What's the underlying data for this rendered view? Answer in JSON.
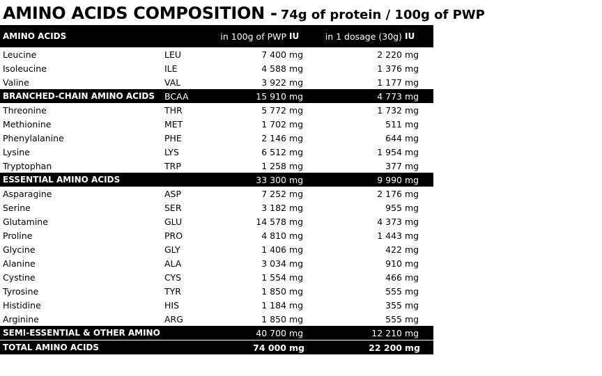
{
  "title": {
    "main": "AMINO ACIDS COMPOSITION -",
    "sub": "74g of protein / 100g of PWP"
  },
  "header": {
    "label": "AMINO ACIDS",
    "col1": "in 100g of PWP",
    "col2": "in 1 dosage (30g)",
    "unit": "IU"
  },
  "rows": [
    {
      "name": "Leucine",
      "code": "LEU",
      "v1": "7 400",
      "u1": "mg",
      "v2": "2 220",
      "u2": "mg",
      "type": "normal"
    },
    {
      "name": "Isoleucine",
      "code": "ILE",
      "v1": "4 588",
      "u1": "mg",
      "v2": "1 376",
      "u2": "mg",
      "type": "normal"
    },
    {
      "name": "Valine",
      "code": "VAL",
      "v1": "3 922",
      "u1": "mg",
      "v2": "1 177",
      "u2": "mg",
      "type": "normal"
    },
    {
      "name": "BRANCHED-CHAIN AMINO ACIDS",
      "code": "BCAA",
      "v1": "15 910",
      "u1": "mg",
      "v2": "4 773",
      "u2": "mg",
      "type": "sum"
    },
    {
      "name": "Threonine",
      "code": "THR",
      "v1": "5 772",
      "u1": "mg",
      "v2": "1 732",
      "u2": "mg",
      "type": "normal"
    },
    {
      "name": "Methionine",
      "code": "MET",
      "v1": "1 702",
      "u1": "mg",
      "v2": "511",
      "u2": "mg",
      "type": "normal"
    },
    {
      "name": "Phenylalanine",
      "code": "PHE",
      "v1": "2 146",
      "u1": "mg",
      "v2": "644",
      "u2": "mg",
      "type": "normal"
    },
    {
      "name": "Lysine",
      "code": "LYS",
      "v1": "6 512",
      "u1": "mg",
      "v2": "1 954",
      "u2": "mg",
      "type": "normal"
    },
    {
      "name": "Tryptophan",
      "code": "TRP",
      "v1": "1 258",
      "u1": "mg",
      "v2": "377",
      "u2": "mg",
      "type": "normal"
    },
    {
      "name": "ESSENTIAL AMINO ACIDS",
      "code": "",
      "v1": "33 300",
      "u1": "mg",
      "v2": "9 990",
      "u2": "mg",
      "type": "sum"
    },
    {
      "name": "Asparagine",
      "code": "ASP",
      "v1": "7 252",
      "u1": "mg",
      "v2": "2 176",
      "u2": "mg",
      "type": "normal"
    },
    {
      "name": "Serine",
      "code": "SER",
      "v1": "3 182",
      "u1": "mg",
      "v2": "955",
      "u2": "mg",
      "type": "normal"
    },
    {
      "name": "Glutamine",
      "code": "GLU",
      "v1": "14 578",
      "u1": "mg",
      "v2": "4 373",
      "u2": "mg",
      "type": "normal"
    },
    {
      "name": "Proline",
      "code": "PRO",
      "v1": "4 810",
      "u1": "mg",
      "v2": "1 443",
      "u2": "mg",
      "type": "normal"
    },
    {
      "name": "Glycine",
      "code": "GLY",
      "v1": "1 406",
      "u1": "mg",
      "v2": "422",
      "u2": "mg",
      "type": "normal"
    },
    {
      "name": "Alanine",
      "code": "ALA",
      "v1": "3 034",
      "u1": "mg",
      "v2": "910",
      "u2": "mg",
      "type": "normal"
    },
    {
      "name": "Cystine",
      "code": "CYS",
      "v1": "1 554",
      "u1": "mg",
      "v2": "466",
      "u2": "mg",
      "type": "normal"
    },
    {
      "name": "Tyrosine",
      "code": "TYR",
      "v1": "1 850",
      "u1": "mg",
      "v2": "555",
      "u2": "mg",
      "type": "normal"
    },
    {
      "name": "Histidine",
      "code": "HIS",
      "v1": "1 184",
      "u1": "mg",
      "v2": "355",
      "u2": "mg",
      "type": "normal"
    },
    {
      "name": "Arginine",
      "code": "ARG",
      "v1": "1 850",
      "u1": "mg",
      "v2": "555",
      "u2": "mg",
      "type": "normal"
    },
    {
      "name": "SEMI-ESSENTIAL & OTHER AMINO ACIDS",
      "code": "",
      "v1": "40 700",
      "u1": "mg",
      "v2": "12 210",
      "u2": "mg",
      "type": "sum"
    },
    {
      "name": "TOTAL AMINO ACIDS",
      "code": "",
      "v1": "74 000",
      "u1": "mg",
      "v2": "22 200",
      "u2": "mg",
      "type": "total"
    }
  ]
}
